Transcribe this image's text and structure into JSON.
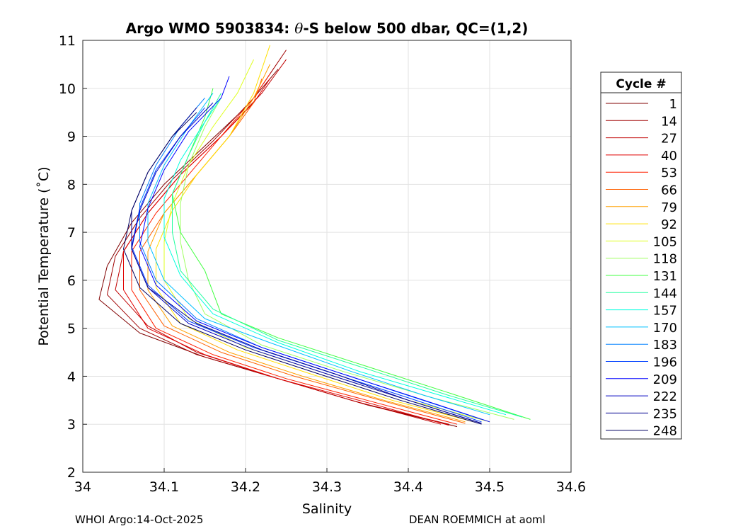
{
  "chart_data": {
    "type": "line",
    "title_prefix": "Argo WMO 5903834: ",
    "title_theta": "θ",
    "title_suffix": "-S below 500 dbar,  QC=(1,2)",
    "xlabel": "Salinity",
    "ylabel": "Potential Temperature (˚C)",
    "xlim": [
      34.0,
      34.6
    ],
    "ylim": [
      2,
      11
    ],
    "xticks": [
      "34",
      "34.1",
      "34.2",
      "34.3",
      "34.4",
      "34.5",
      "34.6"
    ],
    "yticks": [
      "2",
      "3",
      "4",
      "5",
      "6",
      "7",
      "8",
      "9",
      "10",
      "11"
    ],
    "grid": true,
    "legend_title": "Cycle #",
    "legend_position": "outside-right",
    "series": [
      {
        "name": "1",
        "color": "#800000",
        "values": [
          [
            34.46,
            2.95
          ],
          [
            34.35,
            3.4
          ],
          [
            34.25,
            3.9
          ],
          [
            34.15,
            4.4
          ],
          [
            34.07,
            4.9
          ],
          [
            34.02,
            5.6
          ],
          [
            34.03,
            6.3
          ],
          [
            34.06,
            7.2
          ],
          [
            34.1,
            8.0
          ],
          [
            34.15,
            8.8
          ],
          [
            34.2,
            9.6
          ],
          [
            34.24,
            10.4
          ]
        ]
      },
      {
        "name": "14",
        "color": "#a00000",
        "values": [
          [
            34.45,
            3.0
          ],
          [
            34.34,
            3.45
          ],
          [
            34.24,
            3.95
          ],
          [
            34.14,
            4.45
          ],
          [
            34.07,
            5.0
          ],
          [
            34.03,
            5.7
          ],
          [
            34.04,
            6.5
          ],
          [
            34.07,
            7.3
          ],
          [
            34.11,
            8.1
          ],
          [
            34.16,
            8.9
          ],
          [
            34.21,
            9.8
          ],
          [
            34.25,
            10.8
          ]
        ]
      },
      {
        "name": "27",
        "color": "#c00000",
        "values": [
          [
            34.44,
            3.0
          ],
          [
            34.33,
            3.5
          ],
          [
            34.23,
            4.0
          ],
          [
            34.14,
            4.5
          ],
          [
            34.08,
            5.05
          ],
          [
            34.04,
            5.8
          ],
          [
            34.05,
            6.6
          ],
          [
            34.08,
            7.4
          ],
          [
            34.12,
            8.2
          ],
          [
            34.17,
            9.0
          ],
          [
            34.22,
            9.9
          ],
          [
            34.25,
            10.6
          ]
        ]
      },
      {
        "name": "40",
        "color": "#e00000",
        "values": [
          [
            34.45,
            2.98
          ],
          [
            34.35,
            3.45
          ],
          [
            34.24,
            3.95
          ],
          [
            34.15,
            4.45
          ],
          [
            34.08,
            5.0
          ],
          [
            34.05,
            5.8
          ],
          [
            34.05,
            6.6
          ],
          [
            34.08,
            7.4
          ],
          [
            34.12,
            8.2
          ],
          [
            34.17,
            9.0
          ],
          [
            34.21,
            9.7
          ],
          [
            34.23,
            10.2
          ]
        ]
      },
      {
        "name": "53",
        "color": "#ff2000",
        "values": [
          [
            34.46,
            3.0
          ],
          [
            34.36,
            3.45
          ],
          [
            34.25,
            3.95
          ],
          [
            34.16,
            4.45
          ],
          [
            34.09,
            5.0
          ],
          [
            34.06,
            5.8
          ],
          [
            34.06,
            6.6
          ],
          [
            34.09,
            7.4
          ],
          [
            34.13,
            8.2
          ],
          [
            34.17,
            9.0
          ],
          [
            34.21,
            9.8
          ],
          [
            34.23,
            10.3
          ]
        ]
      },
      {
        "name": "66",
        "color": "#ff6000",
        "values": [
          [
            34.47,
            3.02
          ],
          [
            34.37,
            3.48
          ],
          [
            34.26,
            4.0
          ],
          [
            34.17,
            4.5
          ],
          [
            34.1,
            5.05
          ],
          [
            34.07,
            5.8
          ],
          [
            34.07,
            6.6
          ],
          [
            34.1,
            7.4
          ],
          [
            34.14,
            8.2
          ],
          [
            34.18,
            9.0
          ],
          [
            34.21,
            9.7
          ],
          [
            34.22,
            10.2
          ]
        ]
      },
      {
        "name": "79",
        "color": "#ffa000",
        "values": [
          [
            34.47,
            3.05
          ],
          [
            34.37,
            3.5
          ],
          [
            34.27,
            4.0
          ],
          [
            34.18,
            4.5
          ],
          [
            34.11,
            5.05
          ],
          [
            34.08,
            5.8
          ],
          [
            34.08,
            6.6
          ],
          [
            34.1,
            7.4
          ],
          [
            34.14,
            8.2
          ],
          [
            34.18,
            9.0
          ],
          [
            34.21,
            9.8
          ],
          [
            34.23,
            10.5
          ]
        ]
      },
      {
        "name": "92",
        "color": "#ffe000",
        "values": [
          [
            34.48,
            3.05
          ],
          [
            34.38,
            3.5
          ],
          [
            34.28,
            4.05
          ],
          [
            34.19,
            4.55
          ],
          [
            34.12,
            5.1
          ],
          [
            34.09,
            5.85
          ],
          [
            34.09,
            6.65
          ],
          [
            34.11,
            7.45
          ],
          [
            34.14,
            8.2
          ],
          [
            34.18,
            9.0
          ],
          [
            34.21,
            9.9
          ],
          [
            34.23,
            10.9
          ]
        ]
      },
      {
        "name": "105",
        "color": "#dfff20",
        "values": [
          [
            34.5,
            3.05
          ],
          [
            34.4,
            3.5
          ],
          [
            34.3,
            4.05
          ],
          [
            34.2,
            4.6
          ],
          [
            34.13,
            5.2
          ],
          [
            34.1,
            6.0
          ],
          [
            34.1,
            6.8
          ],
          [
            34.11,
            7.6
          ],
          [
            34.13,
            8.4
          ],
          [
            34.16,
            9.2
          ],
          [
            34.19,
            9.9
          ],
          [
            34.21,
            10.6
          ]
        ]
      },
      {
        "name": "118",
        "color": "#9fff60",
        "values": [
          [
            34.53,
            3.1
          ],
          [
            34.43,
            3.55
          ],
          [
            34.32,
            4.1
          ],
          [
            34.22,
            4.65
          ],
          [
            34.15,
            5.3
          ],
          [
            34.13,
            6.0
          ],
          [
            34.12,
            6.8
          ],
          [
            34.12,
            7.6
          ],
          [
            34.13,
            8.4
          ],
          [
            34.15,
            9.2
          ],
          [
            34.17,
            9.8
          ]
        ]
      },
      {
        "name": "131",
        "color": "#40ff40",
        "values": [
          [
            34.55,
            3.1
          ],
          [
            34.46,
            3.6
          ],
          [
            34.35,
            4.2
          ],
          [
            34.24,
            4.8
          ],
          [
            34.17,
            5.3
          ],
          [
            34.15,
            6.2
          ],
          [
            34.12,
            7.0
          ],
          [
            34.11,
            7.8
          ],
          [
            34.13,
            8.6
          ],
          [
            34.15,
            9.4
          ],
          [
            34.16,
            10.0
          ]
        ]
      },
      {
        "name": "144",
        "color": "#20ff9f",
        "values": [
          [
            34.54,
            3.15
          ],
          [
            34.45,
            3.6
          ],
          [
            34.35,
            4.15
          ],
          [
            34.24,
            4.75
          ],
          [
            34.16,
            5.4
          ],
          [
            34.12,
            6.2
          ],
          [
            34.11,
            7.0
          ],
          [
            34.11,
            7.8
          ],
          [
            34.13,
            8.6
          ],
          [
            34.15,
            9.3
          ],
          [
            34.17,
            9.9
          ]
        ]
      },
      {
        "name": "157",
        "color": "#00ffdf",
        "values": [
          [
            34.52,
            3.2
          ],
          [
            34.44,
            3.6
          ],
          [
            34.34,
            4.1
          ],
          [
            34.24,
            4.7
          ],
          [
            34.16,
            5.3
          ],
          [
            34.12,
            6.1
          ],
          [
            34.1,
            6.9
          ],
          [
            34.1,
            7.7
          ],
          [
            34.12,
            8.5
          ],
          [
            34.15,
            9.3
          ],
          [
            34.17,
            9.8
          ]
        ]
      },
      {
        "name": "170",
        "color": "#00c0ff",
        "values": [
          [
            34.5,
            3.2
          ],
          [
            34.42,
            3.6
          ],
          [
            34.33,
            4.1
          ],
          [
            34.23,
            4.7
          ],
          [
            34.15,
            5.2
          ],
          [
            34.1,
            6.0
          ],
          [
            34.08,
            6.8
          ],
          [
            34.08,
            7.6
          ],
          [
            34.1,
            8.4
          ],
          [
            34.13,
            9.2
          ],
          [
            34.16,
            9.9
          ]
        ]
      },
      {
        "name": "183",
        "color": "#0080ff",
        "values": [
          [
            34.49,
            3.1
          ],
          [
            34.4,
            3.6
          ],
          [
            34.31,
            4.1
          ],
          [
            34.22,
            4.6
          ],
          [
            34.14,
            5.2
          ],
          [
            34.09,
            6.0
          ],
          [
            34.07,
            6.8
          ],
          [
            34.07,
            7.6
          ],
          [
            34.09,
            8.4
          ],
          [
            34.12,
            9.2
          ],
          [
            34.15,
            9.8
          ]
        ]
      },
      {
        "name": "196",
        "color": "#0040ff",
        "values": [
          [
            34.49,
            3.05
          ],
          [
            34.4,
            3.55
          ],
          [
            34.3,
            4.1
          ],
          [
            34.21,
            4.6
          ],
          [
            34.13,
            5.15
          ],
          [
            34.08,
            5.9
          ],
          [
            34.06,
            6.7
          ],
          [
            34.07,
            7.5
          ],
          [
            34.09,
            8.3
          ],
          [
            34.12,
            9.0
          ],
          [
            34.15,
            9.6
          ]
        ]
      },
      {
        "name": "209",
        "color": "#0000ff",
        "values": [
          [
            34.5,
            3.05
          ],
          [
            34.41,
            3.55
          ],
          [
            34.31,
            4.1
          ],
          [
            34.22,
            4.6
          ],
          [
            34.14,
            5.15
          ],
          [
            34.09,
            5.9
          ],
          [
            34.07,
            6.7
          ],
          [
            34.08,
            7.5
          ],
          [
            34.1,
            8.3
          ],
          [
            34.13,
            9.1
          ],
          [
            34.17,
            9.8
          ],
          [
            34.18,
            10.25
          ]
        ]
      },
      {
        "name": "222",
        "color": "#0000c0",
        "values": [
          [
            34.49,
            3.02
          ],
          [
            34.4,
            3.5
          ],
          [
            34.3,
            4.05
          ],
          [
            34.21,
            4.55
          ],
          [
            34.13,
            5.1
          ],
          [
            34.08,
            5.85
          ],
          [
            34.06,
            6.65
          ],
          [
            34.07,
            7.45
          ],
          [
            34.09,
            8.25
          ],
          [
            34.12,
            9.0
          ],
          [
            34.16,
            9.7
          ]
        ]
      },
      {
        "name": "235",
        "color": "#000090",
        "values": [
          [
            34.49,
            3.02
          ],
          [
            34.4,
            3.5
          ],
          [
            34.31,
            4.05
          ],
          [
            34.22,
            4.55
          ],
          [
            34.14,
            5.1
          ],
          [
            34.08,
            5.85
          ],
          [
            34.06,
            6.65
          ],
          [
            34.06,
            7.45
          ],
          [
            34.08,
            8.25
          ],
          [
            34.11,
            9.0
          ],
          [
            34.14,
            9.6
          ]
        ]
      },
      {
        "name": "248",
        "color": "#000060",
        "values": [
          [
            34.49,
            3.0
          ],
          [
            34.39,
            3.5
          ],
          [
            34.29,
            4.05
          ],
          [
            34.2,
            4.55
          ],
          [
            34.12,
            5.1
          ],
          [
            34.07,
            5.85
          ],
          [
            34.05,
            6.65
          ],
          [
            34.06,
            7.45
          ],
          [
            34.08,
            8.25
          ],
          [
            34.11,
            9.0
          ],
          [
            34.14,
            9.5
          ]
        ]
      }
    ]
  },
  "footer": {
    "left": "WHOI Argo:14-Oct-2025",
    "right": "DEAN ROEMMICH at aoml"
  }
}
